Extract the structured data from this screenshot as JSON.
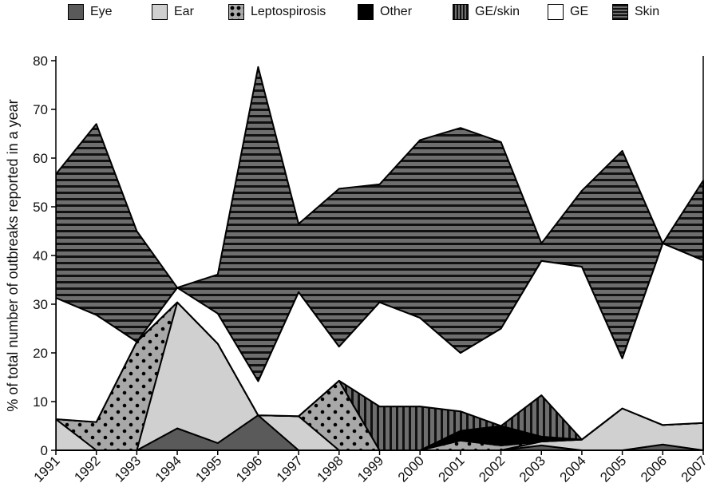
{
  "chart_data": {
    "type": "area",
    "stacked": true,
    "title": "",
    "xlabel": "",
    "ylabel": "% of total number of outbreaks reported in a year",
    "x": [
      "1991",
      "1992",
      "1993",
      "1994",
      "1995",
      "1996",
      "1997",
      "1998",
      "1999",
      "2000",
      "2001",
      "2002",
      "2003",
      "2004",
      "2005",
      "2006",
      "2007"
    ],
    "ylim": [
      0,
      80
    ],
    "yticks": [
      0,
      10,
      20,
      30,
      40,
      50,
      60,
      70,
      80
    ],
    "legend_position": "top",
    "grid": false,
    "series": [
      {
        "name": "Eye",
        "fill": "#5a5a5a",
        "pattern": "solid",
        "values": [
          0,
          0,
          0,
          4.5,
          1.5,
          7.2,
          0,
          0,
          0,
          0,
          0,
          0,
          1,
          0,
          0,
          1.2,
          0
        ]
      },
      {
        "name": "Ear",
        "fill": "#d0d0d0",
        "pattern": "solid",
        "values": [
          6.4,
          0,
          0,
          25.9,
          20.4,
          0,
          7,
          0,
          0,
          0,
          0,
          0,
          0.8,
          2.2,
          8.6,
          4,
          5.6
        ]
      },
      {
        "name": "Leptospirosis",
        "fill": "#a8a8a8",
        "pattern": "dots",
        "values": [
          0,
          5.8,
          22.3,
          0,
          0,
          0,
          0,
          14.3,
          0,
          0,
          2,
          1,
          0,
          0,
          0,
          0,
          0
        ]
      },
      {
        "name": "Other",
        "fill": "#000000",
        "pattern": "solid",
        "values": [
          0,
          0,
          0,
          0,
          0,
          0,
          0,
          0,
          0,
          0,
          2,
          4,
          1,
          0,
          0,
          0,
          0
        ]
      },
      {
        "name": "GE/skin",
        "fill": "#6e6e6e",
        "pattern": "vertical-stripes",
        "values": [
          0,
          0,
          0,
          0,
          0,
          0,
          0,
          0,
          9,
          9,
          4,
          0,
          8.5,
          0,
          0,
          0,
          0
        ]
      },
      {
        "name": "GE",
        "fill": "#ffffff",
        "pattern": "solid",
        "values": [
          24.9,
          22,
          0,
          3,
          6.2,
          7,
          25.5,
          7,
          21.4,
          18.2,
          12,
          20,
          27.6,
          35.5,
          10.3,
          37.3,
          33.4
        ]
      },
      {
        "name": "Skin",
        "fill": "#6e6e6e",
        "pattern": "horizontal-stripes",
        "values": [
          25.4,
          39.2,
          22.7,
          0,
          8,
          64.5,
          14,
          32.4,
          24.2,
          36.5,
          46.2,
          38.3,
          3.6,
          15.6,
          42.6,
          0,
          16.4
        ]
      }
    ]
  },
  "legend": [
    {
      "label": "Eye",
      "fill": "#5a5a5a",
      "pattern": "solid"
    },
    {
      "label": "Ear",
      "fill": "#d0d0d0",
      "pattern": "solid"
    },
    {
      "label": "Leptospirosis",
      "fill": "#a8a8a8",
      "pattern": "dots"
    },
    {
      "label": "Other",
      "fill": "#000000",
      "pattern": "solid"
    },
    {
      "label": "GE/skin",
      "fill": "#6e6e6e",
      "pattern": "vertical-stripes"
    },
    {
      "label": "GE",
      "fill": "#ffffff",
      "pattern": "solid"
    },
    {
      "label": "Skin",
      "fill": "#6e6e6e",
      "pattern": "horizontal-stripes"
    }
  ]
}
